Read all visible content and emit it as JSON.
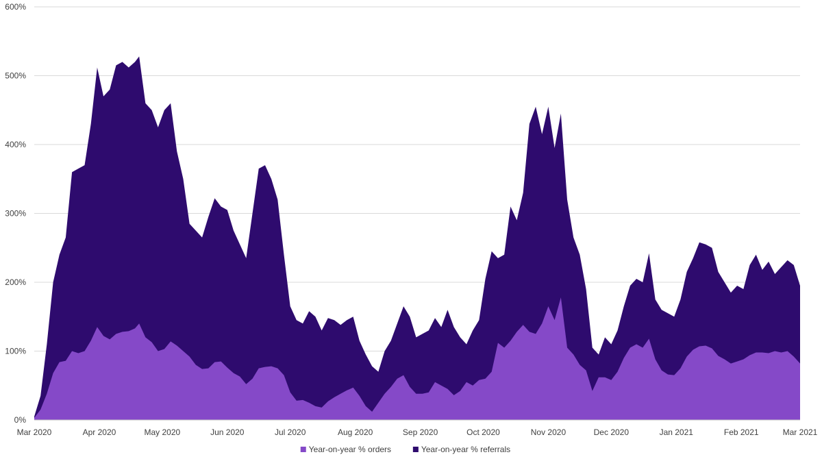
{
  "chart_data": {
    "type": "area",
    "stacked": true,
    "title": "",
    "xlabel": "",
    "ylabel": "",
    "y_unit": "%",
    "ylim": [
      0,
      600
    ],
    "yticks": [
      "0%",
      "100%",
      "200%",
      "300%",
      "400%",
      "500%",
      "600%"
    ],
    "ytick_values": [
      0,
      100,
      200,
      300,
      400,
      500,
      600
    ],
    "xlim": [
      "2020-03-01",
      "2021-03-01"
    ],
    "xticks": [
      {
        "date": "2020-03-01",
        "label": "Mar 2020"
      },
      {
        "date": "2020-04-01",
        "label": "Apr 2020"
      },
      {
        "date": "2020-05-01",
        "label": "May 2020"
      },
      {
        "date": "2020-06-01",
        "label": "Jun 2020"
      },
      {
        "date": "2020-07-01",
        "label": "Jul 2020"
      },
      {
        "date": "2020-08-01",
        "label": "Aug 2020"
      },
      {
        "date": "2020-09-01",
        "label": "Sep 2020"
      },
      {
        "date": "2020-10-01",
        "label": "Oct 2020"
      },
      {
        "date": "2020-11-01",
        "label": "Nov 2020"
      },
      {
        "date": "2020-12-01",
        "label": "Dec 2020"
      },
      {
        "date": "2021-01-01",
        "label": "Jan 2021"
      },
      {
        "date": "2021-02-01",
        "label": "Feb 2021"
      },
      {
        "date": "2021-03-01",
        "label": "Mar 2021"
      }
    ],
    "grid": true,
    "legend_position": "bottom-center",
    "series": [
      {
        "name": "Year-on-year % orders",
        "color": "#8549c8",
        "points": [
          [
            "2020-03-01",
            3
          ],
          [
            "2020-03-04",
            15
          ],
          [
            "2020-03-07",
            38
          ],
          [
            "2020-03-10",
            68
          ],
          [
            "2020-03-13",
            84
          ],
          [
            "2020-03-16",
            86
          ],
          [
            "2020-03-19",
            100
          ],
          [
            "2020-03-22",
            97
          ],
          [
            "2020-03-25",
            100
          ],
          [
            "2020-03-28",
            115
          ],
          [
            "2020-03-31",
            135
          ],
          [
            "2020-04-03",
            122
          ],
          [
            "2020-04-06",
            117
          ],
          [
            "2020-04-09",
            125
          ],
          [
            "2020-04-12",
            128
          ],
          [
            "2020-04-15",
            129
          ],
          [
            "2020-04-18",
            133
          ],
          [
            "2020-04-20",
            140
          ],
          [
            "2020-04-23",
            120
          ],
          [
            "2020-04-26",
            113
          ],
          [
            "2020-04-29",
            100
          ],
          [
            "2020-05-02",
            103
          ],
          [
            "2020-05-05",
            114
          ],
          [
            "2020-05-08",
            108
          ],
          [
            "2020-05-11",
            100
          ],
          [
            "2020-05-14",
            92
          ],
          [
            "2020-05-17",
            80
          ],
          [
            "2020-05-20",
            74
          ],
          [
            "2020-05-23",
            75
          ],
          [
            "2020-05-26",
            84
          ],
          [
            "2020-05-29",
            85
          ],
          [
            "2020-06-01",
            76
          ],
          [
            "2020-06-04",
            68
          ],
          [
            "2020-06-07",
            63
          ],
          [
            "2020-06-10",
            52
          ],
          [
            "2020-06-13",
            60
          ],
          [
            "2020-06-16",
            75
          ],
          [
            "2020-06-19",
            77
          ],
          [
            "2020-06-22",
            78
          ],
          [
            "2020-06-25",
            75
          ],
          [
            "2020-06-28",
            65
          ],
          [
            "2020-07-01",
            40
          ],
          [
            "2020-07-04",
            28
          ],
          [
            "2020-07-07",
            29
          ],
          [
            "2020-07-10",
            25
          ],
          [
            "2020-07-13",
            20
          ],
          [
            "2020-07-16",
            18
          ],
          [
            "2020-07-19",
            27
          ],
          [
            "2020-07-22",
            33
          ],
          [
            "2020-07-25",
            38
          ],
          [
            "2020-07-28",
            43
          ],
          [
            "2020-07-31",
            47
          ],
          [
            "2020-08-03",
            35
          ],
          [
            "2020-08-06",
            20
          ],
          [
            "2020-08-09",
            12
          ],
          [
            "2020-08-12",
            25
          ],
          [
            "2020-08-15",
            38
          ],
          [
            "2020-08-18",
            48
          ],
          [
            "2020-08-21",
            60
          ],
          [
            "2020-08-24",
            65
          ],
          [
            "2020-08-27",
            48
          ],
          [
            "2020-08-30",
            38
          ],
          [
            "2020-09-02",
            38
          ],
          [
            "2020-09-05",
            40
          ],
          [
            "2020-09-08",
            55
          ],
          [
            "2020-09-11",
            50
          ],
          [
            "2020-09-14",
            45
          ],
          [
            "2020-09-17",
            36
          ],
          [
            "2020-09-20",
            42
          ],
          [
            "2020-09-23",
            55
          ],
          [
            "2020-09-26",
            50
          ],
          [
            "2020-09-29",
            58
          ],
          [
            "2020-10-02",
            60
          ],
          [
            "2020-10-05",
            70
          ],
          [
            "2020-10-08",
            112
          ],
          [
            "2020-10-11",
            105
          ],
          [
            "2020-10-14",
            115
          ],
          [
            "2020-10-17",
            128
          ],
          [
            "2020-10-20",
            138
          ],
          [
            "2020-10-23",
            128
          ],
          [
            "2020-10-26",
            125
          ],
          [
            "2020-10-29",
            140
          ],
          [
            "2020-11-01",
            165
          ],
          [
            "2020-11-04",
            145
          ],
          [
            "2020-11-07",
            178
          ],
          [
            "2020-11-10",
            105
          ],
          [
            "2020-11-13",
            95
          ],
          [
            "2020-11-16",
            80
          ],
          [
            "2020-11-19",
            72
          ],
          [
            "2020-11-22",
            42
          ],
          [
            "2020-11-25",
            62
          ],
          [
            "2020-11-28",
            62
          ],
          [
            "2020-12-01",
            58
          ],
          [
            "2020-12-04",
            70
          ],
          [
            "2020-12-07",
            90
          ],
          [
            "2020-12-10",
            105
          ],
          [
            "2020-12-13",
            110
          ],
          [
            "2020-12-16",
            105
          ],
          [
            "2020-12-19",
            118
          ],
          [
            "2020-12-22",
            88
          ],
          [
            "2020-12-25",
            72
          ],
          [
            "2020-12-28",
            66
          ],
          [
            "2020-12-31",
            65
          ],
          [
            "2021-01-03",
            75
          ],
          [
            "2021-01-06",
            92
          ],
          [
            "2021-01-09",
            102
          ],
          [
            "2021-01-12",
            107
          ],
          [
            "2021-01-15",
            108
          ],
          [
            "2021-01-18",
            104
          ],
          [
            "2021-01-21",
            93
          ],
          [
            "2021-01-24",
            88
          ],
          [
            "2021-01-27",
            82
          ],
          [
            "2021-01-30",
            85
          ],
          [
            "2021-02-02",
            88
          ],
          [
            "2021-02-05",
            94
          ],
          [
            "2021-02-08",
            98
          ],
          [
            "2021-02-11",
            98
          ],
          [
            "2021-02-14",
            97
          ],
          [
            "2021-02-17",
            100
          ],
          [
            "2021-02-20",
            98
          ],
          [
            "2021-02-23",
            100
          ],
          [
            "2021-02-26",
            92
          ],
          [
            "2021-03-01",
            82
          ]
        ]
      },
      {
        "name": "Year-on-year % referrals",
        "color": "#2e0b6e",
        "points": [
          [
            "2020-03-01",
            5
          ],
          [
            "2020-03-04",
            35
          ],
          [
            "2020-03-07",
            110
          ],
          [
            "2020-03-10",
            200
          ],
          [
            "2020-03-13",
            240
          ],
          [
            "2020-03-16",
            265
          ],
          [
            "2020-03-19",
            360
          ],
          [
            "2020-03-22",
            365
          ],
          [
            "2020-03-25",
            370
          ],
          [
            "2020-03-28",
            430
          ],
          [
            "2020-03-31",
            512
          ],
          [
            "2020-04-03",
            470
          ],
          [
            "2020-04-06",
            480
          ],
          [
            "2020-04-09",
            515
          ],
          [
            "2020-04-12",
            520
          ],
          [
            "2020-04-15",
            512
          ],
          [
            "2020-04-18",
            520
          ],
          [
            "2020-04-20",
            528
          ],
          [
            "2020-04-23",
            460
          ],
          [
            "2020-04-26",
            450
          ],
          [
            "2020-04-29",
            425
          ],
          [
            "2020-05-02",
            450
          ],
          [
            "2020-05-05",
            460
          ],
          [
            "2020-05-08",
            390
          ],
          [
            "2020-05-11",
            350
          ],
          [
            "2020-05-14",
            285
          ],
          [
            "2020-05-17",
            275
          ],
          [
            "2020-05-20",
            265
          ],
          [
            "2020-05-23",
            295
          ],
          [
            "2020-05-26",
            322
          ],
          [
            "2020-05-29",
            310
          ],
          [
            "2020-06-01",
            305
          ],
          [
            "2020-06-04",
            275
          ],
          [
            "2020-06-07",
            255
          ],
          [
            "2020-06-10",
            235
          ],
          [
            "2020-06-13",
            300
          ],
          [
            "2020-06-16",
            365
          ],
          [
            "2020-06-19",
            370
          ],
          [
            "2020-06-22",
            350
          ],
          [
            "2020-06-25",
            320
          ],
          [
            "2020-06-28",
            240
          ],
          [
            "2020-07-01",
            165
          ],
          [
            "2020-07-04",
            145
          ],
          [
            "2020-07-07",
            140
          ],
          [
            "2020-07-10",
            158
          ],
          [
            "2020-07-13",
            150
          ],
          [
            "2020-07-16",
            130
          ],
          [
            "2020-07-19",
            148
          ],
          [
            "2020-07-22",
            145
          ],
          [
            "2020-07-25",
            138
          ],
          [
            "2020-07-28",
            145
          ],
          [
            "2020-07-31",
            150
          ],
          [
            "2020-08-03",
            115
          ],
          [
            "2020-08-06",
            95
          ],
          [
            "2020-08-09",
            78
          ],
          [
            "2020-08-12",
            70
          ],
          [
            "2020-08-15",
            100
          ],
          [
            "2020-08-18",
            115
          ],
          [
            "2020-08-21",
            140
          ],
          [
            "2020-08-24",
            165
          ],
          [
            "2020-08-27",
            150
          ],
          [
            "2020-08-30",
            120
          ],
          [
            "2020-09-02",
            125
          ],
          [
            "2020-09-05",
            130
          ],
          [
            "2020-09-08",
            148
          ],
          [
            "2020-09-11",
            135
          ],
          [
            "2020-09-14",
            160
          ],
          [
            "2020-09-17",
            135
          ],
          [
            "2020-09-20",
            120
          ],
          [
            "2020-09-23",
            110
          ],
          [
            "2020-09-26",
            130
          ],
          [
            "2020-09-29",
            145
          ],
          [
            "2020-10-02",
            205
          ],
          [
            "2020-10-05",
            245
          ],
          [
            "2020-10-08",
            235
          ],
          [
            "2020-10-11",
            240
          ],
          [
            "2020-10-14",
            310
          ],
          [
            "2020-10-17",
            290
          ],
          [
            "2020-10-20",
            330
          ],
          [
            "2020-10-23",
            430
          ],
          [
            "2020-10-26",
            455
          ],
          [
            "2020-10-29",
            415
          ],
          [
            "2020-11-01",
            455
          ],
          [
            "2020-11-04",
            395
          ],
          [
            "2020-11-07",
            445
          ],
          [
            "2020-11-10",
            320
          ],
          [
            "2020-11-13",
            265
          ],
          [
            "2020-11-16",
            240
          ],
          [
            "2020-11-19",
            190
          ],
          [
            "2020-11-22",
            105
          ],
          [
            "2020-11-25",
            95
          ],
          [
            "2020-11-28",
            120
          ],
          [
            "2020-12-01",
            110
          ],
          [
            "2020-12-04",
            130
          ],
          [
            "2020-12-07",
            165
          ],
          [
            "2020-12-10",
            195
          ],
          [
            "2020-12-13",
            205
          ],
          [
            "2020-12-16",
            200
          ],
          [
            "2020-12-19",
            242
          ],
          [
            "2020-12-22",
            175
          ],
          [
            "2020-12-25",
            160
          ],
          [
            "2020-12-28",
            155
          ],
          [
            "2020-12-31",
            150
          ],
          [
            "2021-01-03",
            175
          ],
          [
            "2021-01-06",
            215
          ],
          [
            "2021-01-09",
            235
          ],
          [
            "2021-01-12",
            258
          ],
          [
            "2021-01-15",
            255
          ],
          [
            "2021-01-18",
            250
          ],
          [
            "2021-01-21",
            215
          ],
          [
            "2021-01-24",
            200
          ],
          [
            "2021-01-27",
            185
          ],
          [
            "2021-01-30",
            195
          ],
          [
            "2021-02-02",
            190
          ],
          [
            "2021-02-05",
            225
          ],
          [
            "2021-02-08",
            240
          ],
          [
            "2021-02-11",
            218
          ],
          [
            "2021-02-14",
            230
          ],
          [
            "2021-02-17",
            212
          ],
          [
            "2021-02-20",
            222
          ],
          [
            "2021-02-23",
            232
          ],
          [
            "2021-02-26",
            225
          ],
          [
            "2021-03-01",
            195
          ]
        ]
      }
    ]
  }
}
